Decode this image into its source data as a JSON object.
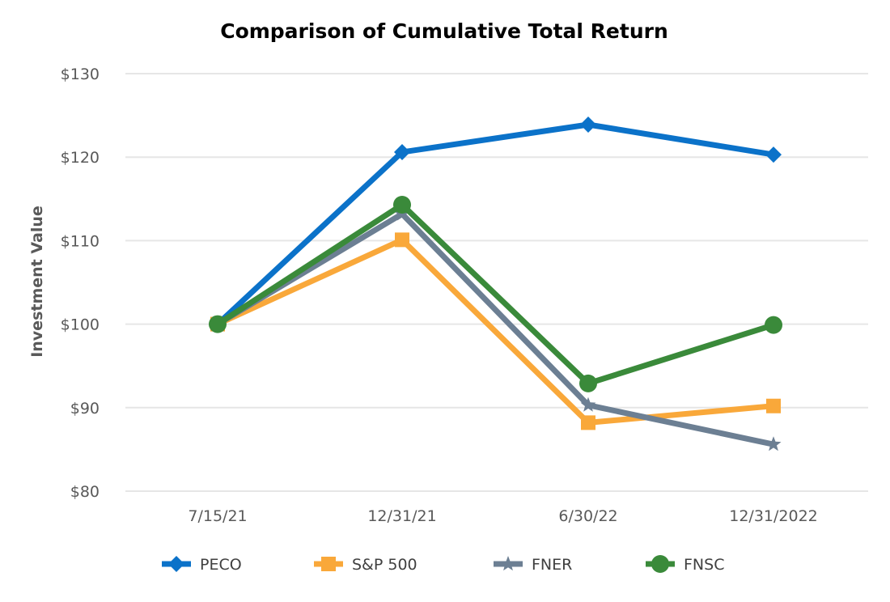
{
  "chart_data": {
    "type": "line",
    "title": "Comparison of Cumulative Total Return",
    "xlabel": "",
    "ylabel": "Investment Value",
    "categories": [
      "7/15/21",
      "12/31/21",
      "6/30/22",
      "12/31/2022"
    ],
    "ylim": [
      80,
      130
    ],
    "y_ticks": [
      80,
      90,
      100,
      110,
      120,
      130
    ],
    "y_tick_labels": [
      "$80",
      "$90",
      "$100",
      "$110",
      "$120",
      "$130"
    ],
    "grid": true,
    "legend_position": "bottom",
    "series": [
      {
        "name": "PECO",
        "values": [
          100,
          120.6,
          123.9,
          120.3
        ],
        "color": "#0b72c9",
        "marker": "diamond"
      },
      {
        "name": "S&P 500",
        "values": [
          100,
          110.1,
          88.2,
          90.2
        ],
        "color": "#f9a83a",
        "marker": "square"
      },
      {
        "name": "FNER",
        "values": [
          100,
          113.2,
          90.3,
          85.6
        ],
        "color": "#6c7f93",
        "marker": "star"
      },
      {
        "name": "FNSC",
        "values": [
          100,
          114.3,
          92.9,
          99.9
        ],
        "color": "#3a8a3a",
        "marker": "circle"
      }
    ]
  }
}
